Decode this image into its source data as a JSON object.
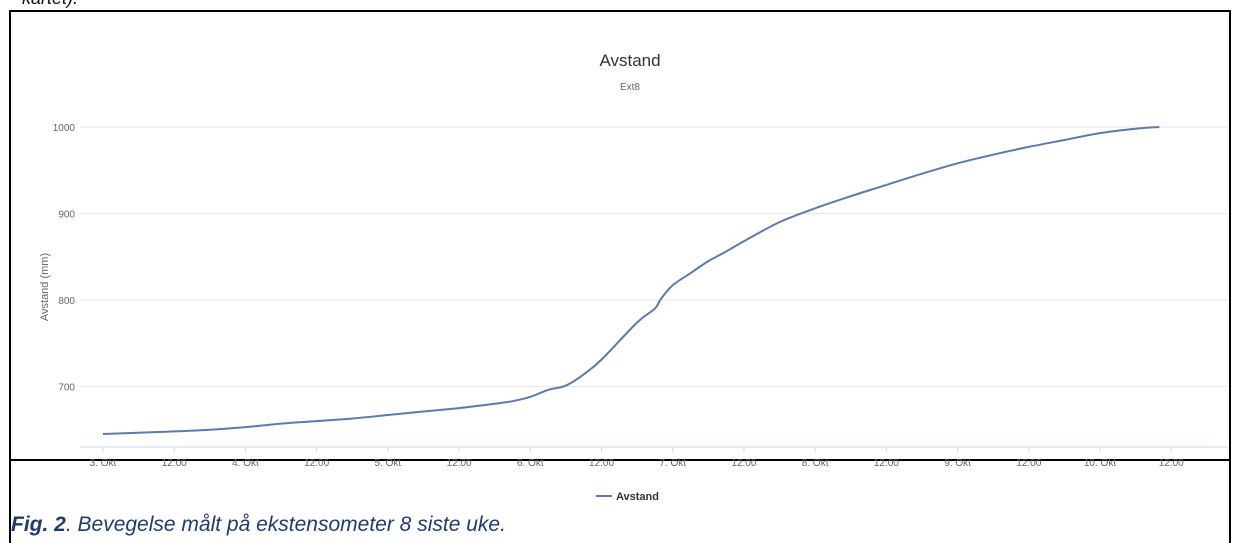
{
  "page": {
    "top_text": "kartet).",
    "caption_bold": "Fig. 2",
    "caption_rest": ". Bevegelse målt på ekstensometer 8 siste uke."
  },
  "colors": {
    "series_line": "#5b7bac",
    "grid": "#e6e6e6",
    "axis_text": "#666666",
    "title_text": "#333333"
  },
  "chart_data": {
    "type": "line",
    "title": "Avstand",
    "subtitle": "Ext8",
    "ylabel": "Avstand (mm)",
    "xlabel": "",
    "ylim": [
      630,
      1000
    ],
    "yticks": [
      700,
      800,
      900,
      1000
    ],
    "xlim": [
      "2000-10-03T00:00",
      "2000-10-11T12:00"
    ],
    "xticks": [
      {
        "at": "2000-10-03T00:00",
        "label": "3. Okt"
      },
      {
        "at": "2000-10-03T12:00",
        "label": "12:00"
      },
      {
        "at": "2000-10-04T00:00",
        "label": "4. Okt"
      },
      {
        "at": "2000-10-04T12:00",
        "label": "12:00"
      },
      {
        "at": "2000-10-05T00:00",
        "label": "5. Okt"
      },
      {
        "at": "2000-10-05T12:00",
        "label": "12:00"
      },
      {
        "at": "2000-10-06T00:00",
        "label": "6. Okt"
      },
      {
        "at": "2000-10-06T12:00",
        "label": "12:00"
      },
      {
        "at": "2000-10-07T00:00",
        "label": "7. Okt"
      },
      {
        "at": "2000-10-07T12:00",
        "label": "12:00"
      },
      {
        "at": "2000-10-08T00:00",
        "label": "8. Okt"
      },
      {
        "at": "2000-10-08T12:00",
        "label": "12:00"
      },
      {
        "at": "2000-10-09T00:00",
        "label": "9. Okt"
      },
      {
        "at": "2000-10-09T12:00",
        "label": "12:00"
      },
      {
        "at": "2000-10-10T00:00",
        "label": "10. Okt"
      },
      {
        "at": "2000-10-10T12:00",
        "label": "12:00"
      }
    ],
    "grid": true,
    "legend": "bottom-center",
    "series": [
      {
        "name": "Avstand",
        "x": [
          "2000-10-03T00:00",
          "2000-10-03T08:00",
          "2000-10-03T12:00",
          "2000-10-03T18:00",
          "2000-10-04T00:00",
          "2000-10-04T06:00",
          "2000-10-04T12:00",
          "2000-10-04T18:00",
          "2000-10-05T00:00",
          "2000-10-05T06:00",
          "2000-10-05T12:00",
          "2000-10-05T18:00",
          "2000-10-05T21:00",
          "2000-10-06T00:00",
          "2000-10-06T03:00",
          "2000-10-06T06:00",
          "2000-10-06T09:00",
          "2000-10-06T12:00",
          "2000-10-06T18:00",
          "2000-10-06T21:00",
          "2000-10-06T22:00",
          "2000-10-07T00:00",
          "2000-10-07T03:00",
          "2000-10-07T06:00",
          "2000-10-07T09:00",
          "2000-10-07T12:00",
          "2000-10-07T18:00",
          "2000-10-08T00:00",
          "2000-10-08T06:00",
          "2000-10-08T12:00",
          "2000-10-08T18:00",
          "2000-10-09T00:00",
          "2000-10-09T06:00",
          "2000-10-09T12:00",
          "2000-10-09T18:00",
          "2000-10-10T00:00",
          "2000-10-10T06:00",
          "2000-10-10T10:00"
        ],
        "y": [
          645,
          647,
          648,
          650,
          653,
          657,
          660,
          663,
          667,
          671,
          675,
          680,
          683,
          688,
          696,
          701,
          714,
          731,
          774,
          790,
          801,
          817,
          831,
          845,
          856,
          868,
          890,
          906,
          920,
          933,
          946,
          958,
          968,
          977,
          985,
          993,
          998,
          1000
        ]
      }
    ]
  }
}
